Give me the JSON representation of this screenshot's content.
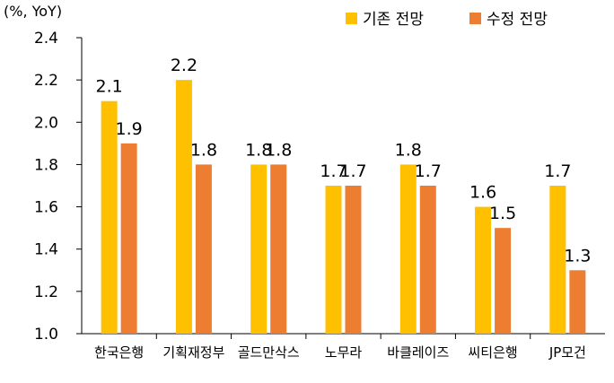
{
  "chart_data": {
    "type": "bar",
    "unit_label": "(%, YoY)",
    "categories": [
      "한국은행",
      "기획재정부",
      "골드만삭스",
      "노무라",
      "바클레이즈",
      "씨티은행",
      "JP모건"
    ],
    "series": [
      {
        "name": "기존 전망",
        "color": "#FFC000",
        "values": [
          2.1,
          2.2,
          1.8,
          1.7,
          1.8,
          1.6,
          1.7
        ]
      },
      {
        "name": "수정 전망",
        "color": "#ED7D31",
        "values": [
          1.9,
          1.8,
          1.8,
          1.7,
          1.7,
          1.5,
          1.3
        ]
      }
    ],
    "value_labels": [
      [
        "2.1",
        "2.2",
        "1.8",
        "1.7",
        "1.8",
        "1.6",
        "1.7"
      ],
      [
        "1.9",
        "1.8",
        "1.8",
        "1.7",
        "1.7",
        "1.5",
        "1.3"
      ]
    ],
    "ylim": [
      1.0,
      2.4
    ],
    "yticks": [
      "1.0",
      "1.2",
      "1.4",
      "1.6",
      "1.8",
      "2.0",
      "2.2",
      "2.4"
    ],
    "legend_position": "top-right"
  }
}
